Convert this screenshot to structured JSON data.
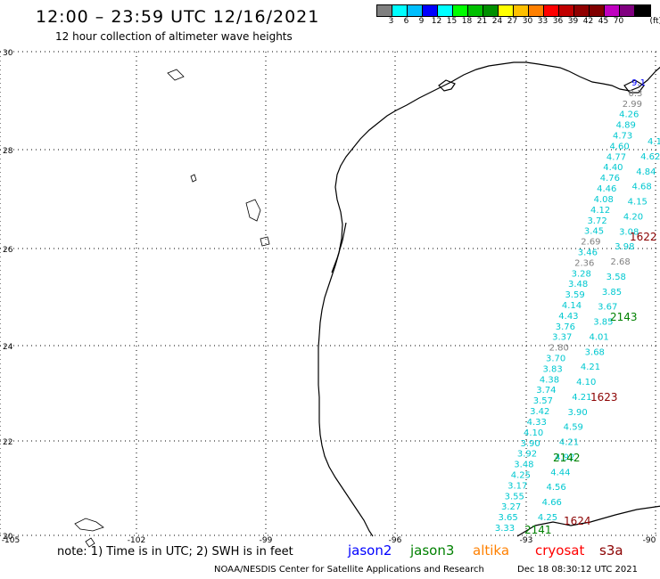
{
  "header": {
    "title": "12:00 – 23:59 UTC 12/16/2021",
    "subtitle": "12 hour collection of altimeter wave heights"
  },
  "legend": {
    "colors": [
      "#808080",
      "#00ffff",
      "#00bfff",
      "#0000ff",
      "#00ffff",
      "#00ff00",
      "#00c000",
      "#009000",
      "#ffff00",
      "#ffc000",
      "#ff8000",
      "#ff0000",
      "#c00000",
      "#900000",
      "#800000",
      "#c000c0",
      "#800080",
      "#000000"
    ],
    "labels": [
      "3",
      "6",
      "9",
      "12",
      "15",
      "18",
      "21",
      "24",
      "27",
      "30",
      "33",
      "36",
      "39",
      "42",
      "45",
      "70"
    ],
    "unit": "(ft)"
  },
  "axes": {
    "lat_labels": [
      "30",
      "28",
      "26",
      "24",
      "22",
      "20"
    ],
    "lon_labels": [
      "-105",
      "-102",
      "-99",
      "-96",
      "-93",
      "-90"
    ]
  },
  "passes": [
    {
      "label": "1622",
      "color": "#8b0000"
    },
    {
      "label": "2143",
      "color": "#008000"
    },
    {
      "label": "1623",
      "color": "#8b0000"
    },
    {
      "label": "2142",
      "color": "#008000"
    },
    {
      "label": "1624",
      "color": "#8b0000"
    },
    {
      "label": "2141",
      "color": "#008000"
    }
  ],
  "wave_heights": [
    {
      "v": "9.1",
      "c": "#0000ff"
    },
    {
      "v": "0.3",
      "c": "#808080"
    },
    {
      "v": "2.99",
      "c": "#808080"
    },
    {
      "v": "4.26",
      "c": "#00c8d0"
    },
    {
      "v": "4.89",
      "c": "#00c8d0"
    },
    {
      "v": "4.73",
      "c": "#00c8d0"
    },
    {
      "v": "4.60",
      "c": "#00c8d0"
    },
    {
      "v": "4.77",
      "c": "#00c8d0"
    },
    {
      "v": "4.40",
      "c": "#00c8d0"
    },
    {
      "v": "4.76",
      "c": "#00c8d0"
    },
    {
      "v": "4.46",
      "c": "#00c8d0"
    },
    {
      "v": "4.08",
      "c": "#00c8d0"
    },
    {
      "v": "4.12",
      "c": "#00c8d0"
    },
    {
      "v": "3.72",
      "c": "#00c8d0"
    },
    {
      "v": "3.45",
      "c": "#00c8d0"
    },
    {
      "v": "2.69",
      "c": "#808080"
    },
    {
      "v": "3.46",
      "c": "#00c8d0"
    },
    {
      "v": "2.36",
      "c": "#808080"
    },
    {
      "v": "3.28",
      "c": "#00c8d0"
    },
    {
      "v": "3.48",
      "c": "#00c8d0"
    },
    {
      "v": "3.59",
      "c": "#00c8d0"
    },
    {
      "v": "4.14",
      "c": "#00c8d0"
    },
    {
      "v": "4.43",
      "c": "#00c8d0"
    },
    {
      "v": "3.76",
      "c": "#00c8d0"
    },
    {
      "v": "3.37",
      "c": "#00c8d0"
    },
    {
      "v": "2.80",
      "c": "#808080"
    },
    {
      "v": "3.70",
      "c": "#00c8d0"
    },
    {
      "v": "3.83",
      "c": "#00c8d0"
    },
    {
      "v": "4.38",
      "c": "#00c8d0"
    },
    {
      "v": "3.74",
      "c": "#00c8d0"
    },
    {
      "v": "3.57",
      "c": "#00c8d0"
    },
    {
      "v": "3.42",
      "c": "#00c8d0"
    },
    {
      "v": "4.33",
      "c": "#00c8d0"
    },
    {
      "v": "4.10",
      "c": "#00c8d0"
    },
    {
      "v": "3.90",
      "c": "#00c8d0"
    },
    {
      "v": "3.92",
      "c": "#00c8d0"
    },
    {
      "v": "3.48",
      "c": "#00c8d0"
    },
    {
      "v": "4.25",
      "c": "#00c8d0"
    },
    {
      "v": "3.17",
      "c": "#00c8d0"
    },
    {
      "v": "3.55",
      "c": "#00c8d0"
    },
    {
      "v": "3.27",
      "c": "#00c8d0"
    },
    {
      "v": "3.65",
      "c": "#00c8d0"
    },
    {
      "v": "3.33",
      "c": "#00c8d0"
    },
    {
      "v": "4.1",
      "c": "#00c8d0"
    },
    {
      "v": "4.62",
      "c": "#00c8d0"
    },
    {
      "v": "4.84",
      "c": "#00c8d0"
    },
    {
      "v": "4.68",
      "c": "#00c8d0"
    },
    {
      "v": "4.15",
      "c": "#00c8d0"
    },
    {
      "v": "4.20",
      "c": "#00c8d0"
    },
    {
      "v": "3.08",
      "c": "#00c8d0"
    },
    {
      "v": "3.98",
      "c": "#00c8d0"
    },
    {
      "v": "2.68",
      "c": "#808080"
    },
    {
      "v": "3.58",
      "c": "#00c8d0"
    },
    {
      "v": "3.85",
      "c": "#00c8d0"
    },
    {
      "v": "3.67",
      "c": "#00c8d0"
    },
    {
      "v": "3.85",
      "c": "#00c8d0"
    },
    {
      "v": "4.01",
      "c": "#00c8d0"
    },
    {
      "v": "3.68",
      "c": "#00c8d0"
    },
    {
      "v": "4.21",
      "c": "#00c8d0"
    },
    {
      "v": "4.10",
      "c": "#00c8d0"
    },
    {
      "v": "4.21",
      "c": "#00c8d0"
    },
    {
      "v": "3.90",
      "c": "#00c8d0"
    },
    {
      "v": "4.59",
      "c": "#00c8d0"
    },
    {
      "v": "4.21",
      "c": "#00c8d0"
    },
    {
      "v": "4.92",
      "c": "#00c8d0"
    },
    {
      "v": "4.44",
      "c": "#00c8d0"
    },
    {
      "v": "4.56",
      "c": "#00c8d0"
    },
    {
      "v": "4.66",
      "c": "#00c8d0"
    },
    {
      "v": "4.25",
      "c": "#00c8d0"
    }
  ],
  "footer": {
    "note": "note: 1) Time is in UTC; 2) SWH is in feet",
    "satellites": [
      {
        "name": "jason2",
        "color": "#0000ff"
      },
      {
        "name": "jason3",
        "color": "#008000"
      },
      {
        "name": "altika",
        "color": "#ff8000"
      },
      {
        "name": "cryosat",
        "color": "#ff0000"
      },
      {
        "name": "s3a",
        "color": "#8b0000"
      }
    ],
    "credit": "NOAA/NESDIS Center for Satellite Applications and Research",
    "timestamp": "Dec 18 08:30:12 UTC 2021"
  }
}
